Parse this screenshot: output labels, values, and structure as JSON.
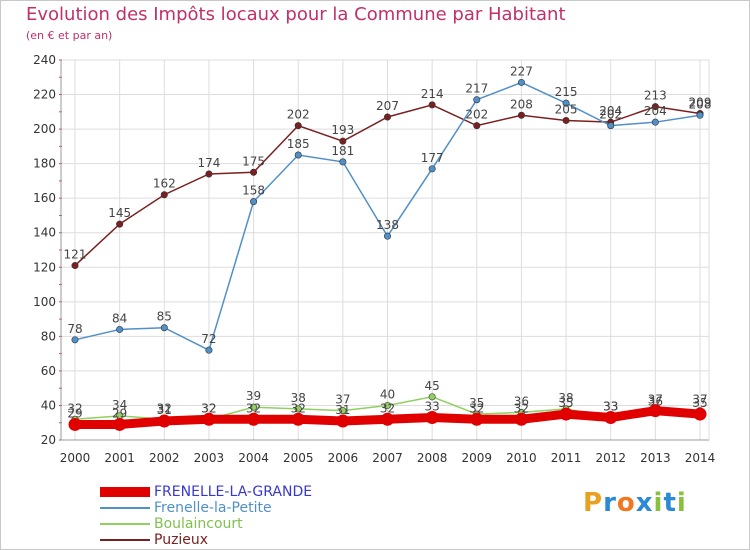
{
  "header": {
    "title": "Evolution des Impôts locaux pour la Commune par Habitant",
    "subtitle": "(en € et par an)"
  },
  "logo": {
    "letters": [
      "P",
      "r",
      "o",
      "x",
      "i",
      "t",
      "i"
    ],
    "colors": [
      "#e8a020",
      "#2a8ad6",
      "#f07820",
      "#2a8ad6",
      "#8ac040",
      "#2a8ad6",
      "#8ac040"
    ]
  },
  "chart_data": {
    "type": "line",
    "title": "Evolution des Impôts locaux pour la Commune par Habitant",
    "subtitle": "(en € et par an)",
    "xlabel": "",
    "ylabel": "",
    "categories": [
      "2000",
      "2001",
      "2002",
      "2003",
      "2004",
      "2005",
      "2006",
      "2007",
      "2008",
      "2009",
      "2010",
      "2011",
      "2012",
      "2013",
      "2014"
    ],
    "ylim": [
      20,
      240
    ],
    "yticks": [
      "20",
      "40",
      "60",
      "80",
      "100",
      "120",
      "140",
      "160",
      "180",
      "200",
      "220",
      "240"
    ],
    "grid": true,
    "legend_position": "bottom-left",
    "series": [
      {
        "name": "FRENELLE-LA-GRANDE",
        "color": "#e00000",
        "legend_color": "#3838d0",
        "style": "thick",
        "values": [
          29,
          29,
          31,
          32,
          32,
          32,
          31,
          32,
          33,
          32,
          32,
          35,
          33,
          37,
          35
        ],
        "labels": [
          "29",
          "29",
          "31",
          "32",
          "32",
          "32",
          "31",
          "32",
          "33",
          "32",
          "32",
          "35",
          "33",
          "37",
          "35"
        ]
      },
      {
        "name": "Frenelle-la-Petite",
        "color": "#5090c8",
        "legend_color": "#5090c8",
        "style": "line",
        "values": [
          78,
          84,
          85,
          72,
          158,
          185,
          181,
          138,
          177,
          217,
          227,
          215,
          202,
          204,
          208
        ],
        "labels": [
          "78",
          "84",
          "85",
          "72",
          "158",
          "185",
          "181",
          "138",
          "177",
          "217",
          "227",
          "215",
          "202",
          "204",
          "208"
        ]
      },
      {
        "name": "Boulaincourt",
        "color": "#90d060",
        "legend_color": "#80c050",
        "style": "line",
        "values": [
          32,
          34,
          32,
          32,
          39,
          38,
          37,
          40,
          45,
          35,
          36,
          38,
          33,
          36,
          37
        ],
        "labels": [
          "32",
          "34",
          "32",
          "32",
          "39",
          "38",
          "37",
          "40",
          "45",
          "35",
          "36",
          "38",
          "33",
          "36",
          "37"
        ]
      },
      {
        "name": "Puzieux",
        "color": "#7a2020",
        "legend_color": "#7a2020",
        "style": "line",
        "values": [
          121,
          145,
          162,
          174,
          175,
          202,
          193,
          207,
          214,
          202,
          208,
          205,
          204,
          213,
          209
        ],
        "labels": [
          "121",
          "145",
          "162",
          "174",
          "175",
          "202",
          "193",
          "207",
          "214",
          "202",
          "208",
          "205",
          "204",
          "213",
          "209"
        ]
      }
    ]
  }
}
